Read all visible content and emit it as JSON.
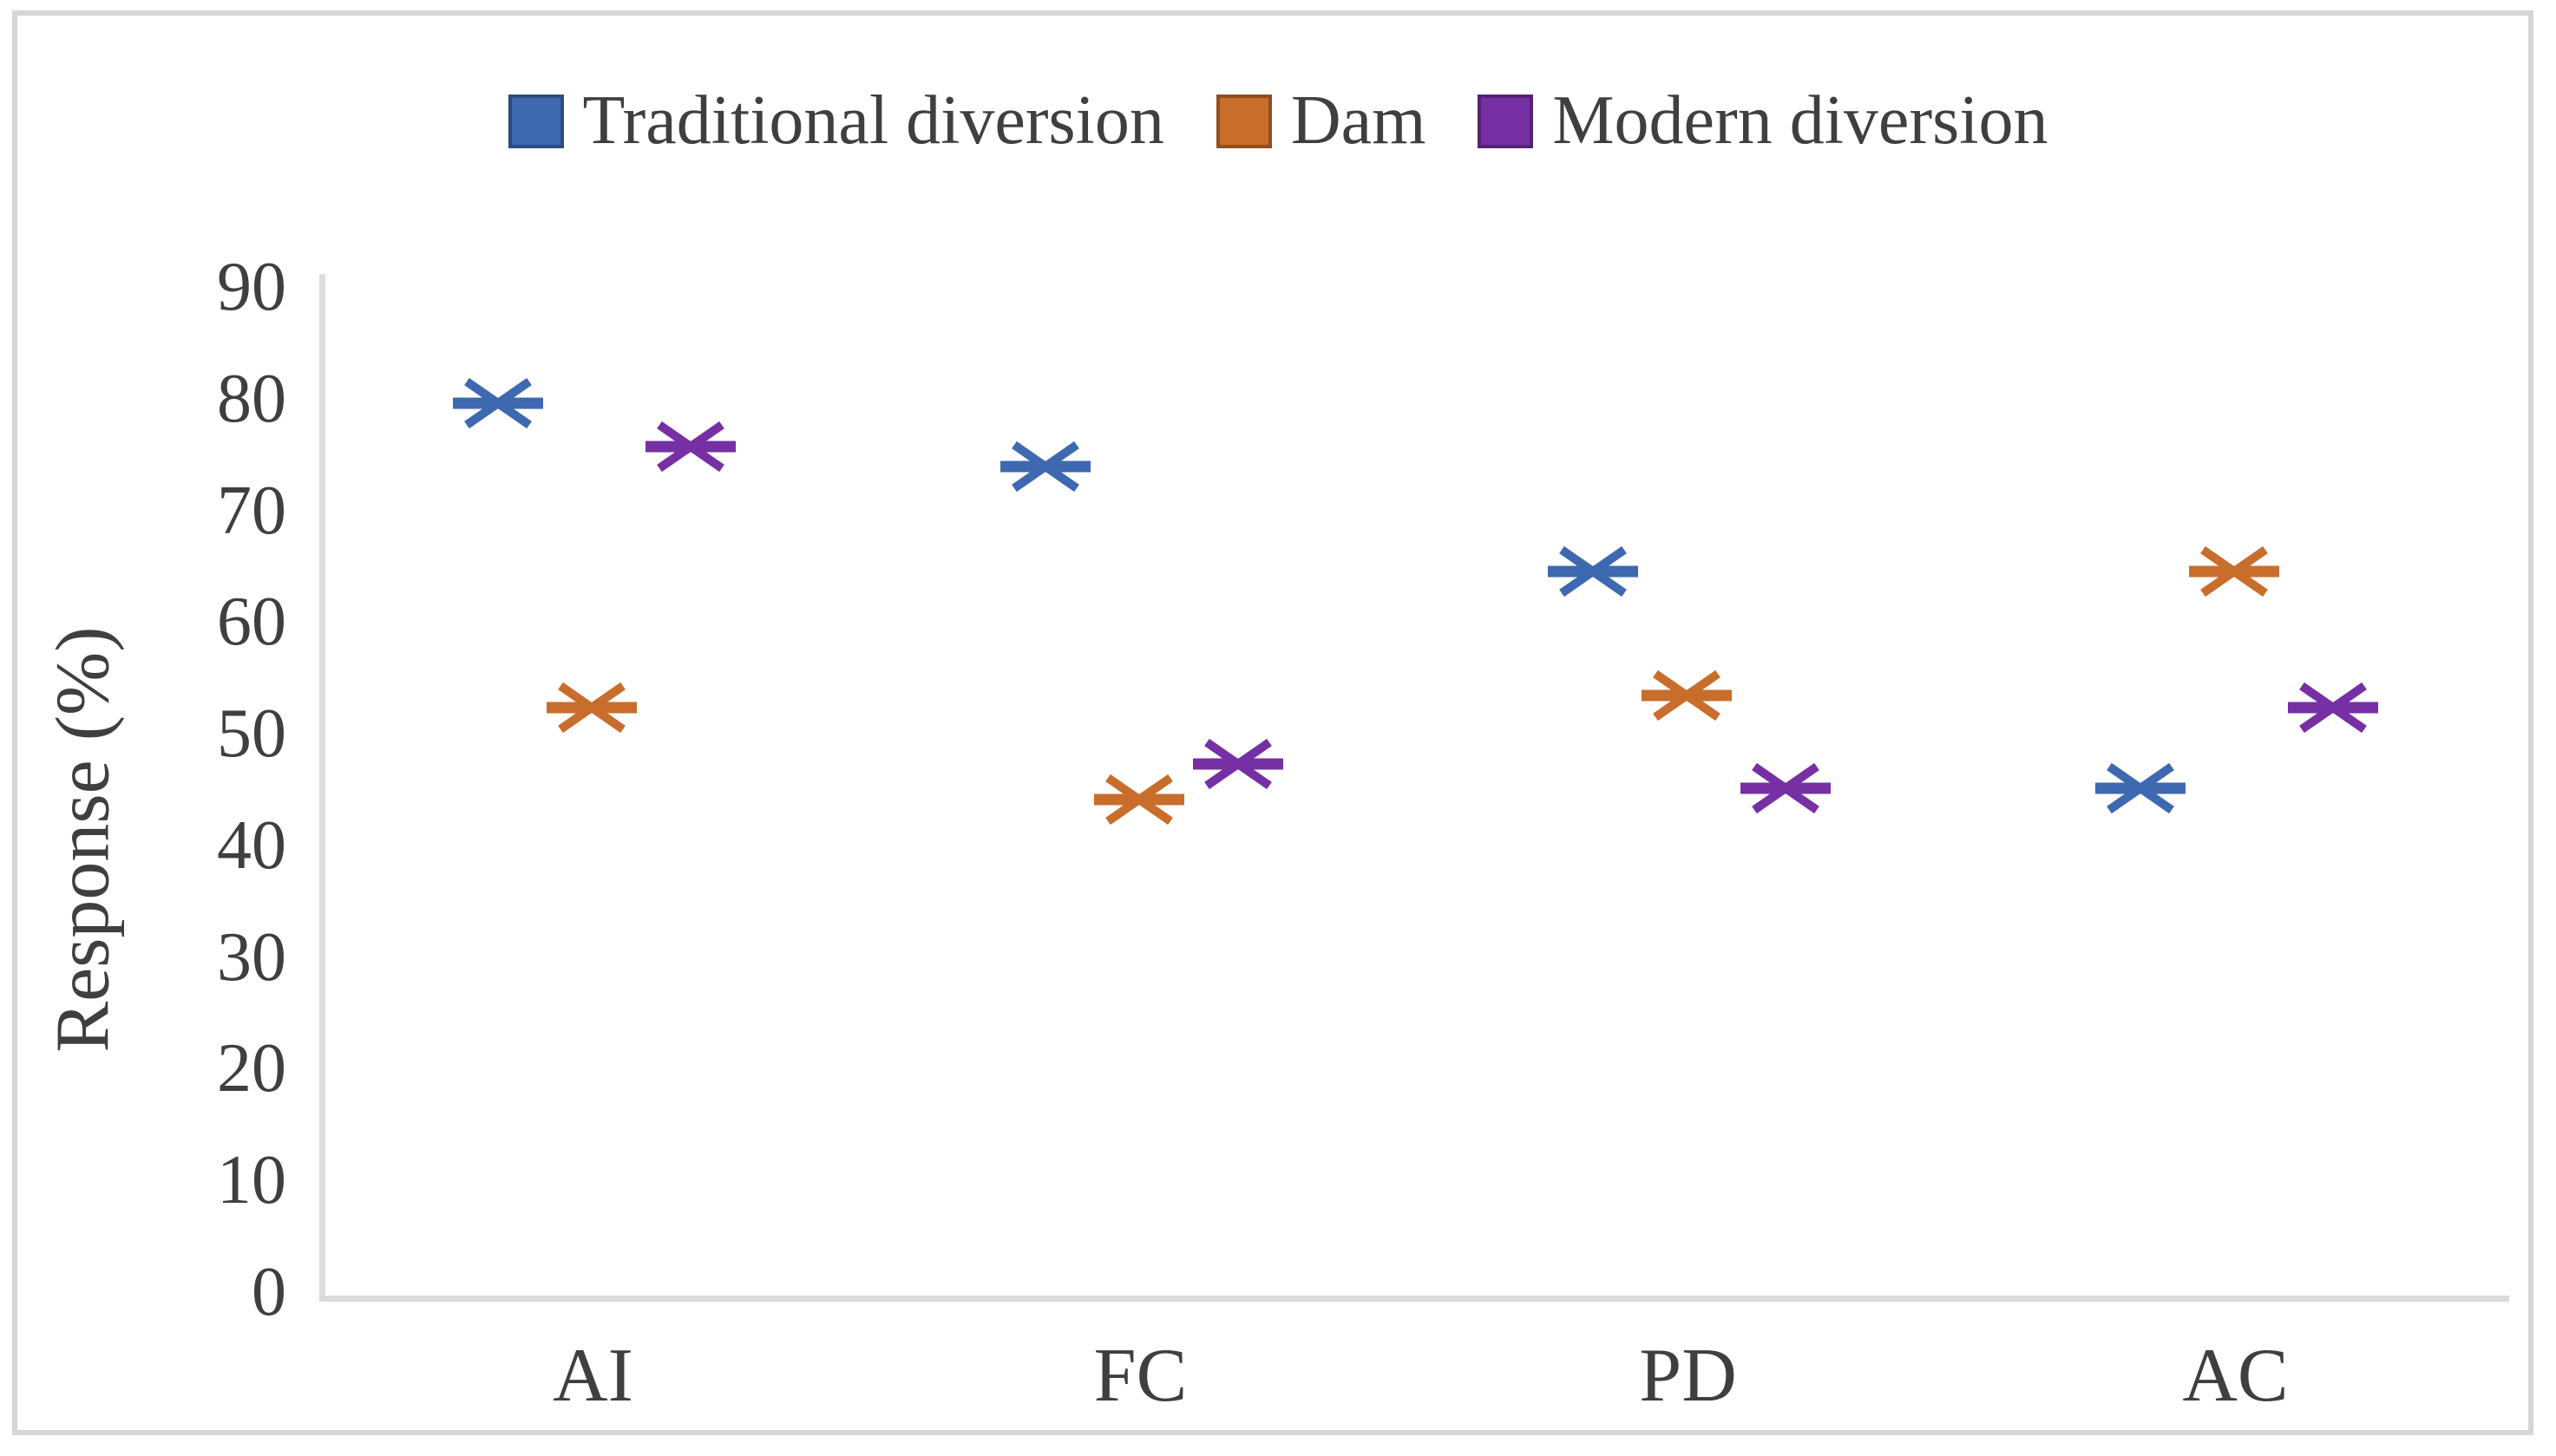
{
  "chart_data": {
    "type": "scatter",
    "title": "",
    "marker_style": "asterisk-horizontal",
    "categories": [
      "AI",
      "FC",
      "PD",
      "AC"
    ],
    "series": [
      {
        "name": "Traditional diversion",
        "color": "#3E68B0",
        "values": [
          79.6,
          73.9,
          64.5,
          45.1
        ]
      },
      {
        "name": "Dam",
        "color": "#C96D2C",
        "values": [
          52.3,
          44.1,
          53.4,
          64.5
        ]
      },
      {
        "name": "Modern diversion",
        "color": "#7630A3",
        "values": [
          75.7,
          47.3,
          45.1,
          52.3
        ]
      }
    ],
    "xlabel": "",
    "ylabel": "Response (%)",
    "ylim": [
      0,
      90
    ],
    "yticks": [
      0,
      10,
      20,
      30,
      40,
      50,
      60,
      70,
      80,
      90
    ],
    "grid": false,
    "legend_position": "top-center",
    "axis_line_color": "#DBDBDB",
    "text_color": "#3F3F3F",
    "frame_border_color": "#D6D6D6",
    "background_color": "#FFFFFF"
  }
}
